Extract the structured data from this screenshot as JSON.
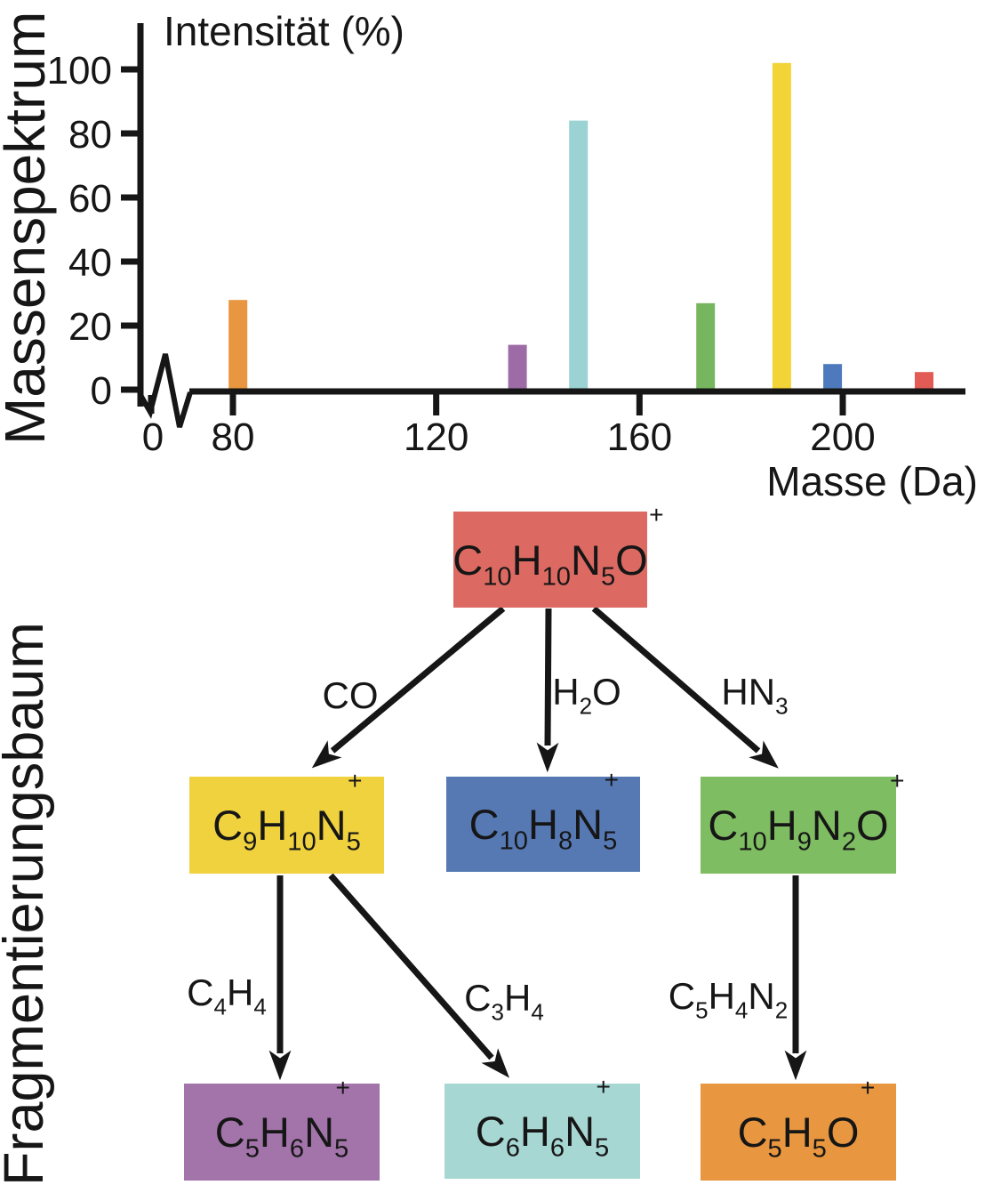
{
  "panels": {
    "top_label": "Massenspektrum",
    "bottom_label": "Fragmentierungsbaum"
  },
  "chart_data": {
    "type": "bar",
    "title": "",
    "ylabel": "Intensität (%)",
    "xlabel": "Masse (Da)",
    "y_ticks": [
      0,
      20,
      40,
      60,
      80,
      100
    ],
    "x_ticks": [
      0,
      80,
      120,
      160,
      200
    ],
    "has_x_axis_break": true,
    "x_break_between": [
      0,
      72
    ],
    "x_range_shown": [
      72,
      225
    ],
    "ylim": [
      0,
      114
    ],
    "grid": false,
    "legend": false,
    "bars": [
      {
        "mass": 81,
        "intensity": 28,
        "color": "#E8963F"
      },
      {
        "mass": 136,
        "intensity": 14,
        "color": "#9D6CA6"
      },
      {
        "mass": 148,
        "intensity": 84,
        "color": "#9BD2D3"
      },
      {
        "mass": 173,
        "intensity": 27,
        "color": "#76B65F"
      },
      {
        "mass": 188,
        "intensity": 102,
        "color": "#F2D437"
      },
      {
        "mass": 198,
        "intensity": 8,
        "color": "#4E79BC"
      },
      {
        "mass": 216,
        "intensity": 5.5,
        "color": "#E25B55"
      }
    ]
  },
  "tree": {
    "nodes": [
      {
        "id": "parent",
        "text": "C₁₀H₁₀N₅O⁺",
        "color": "#DC6A62",
        "formula": [
          {
            "m": "C",
            "sub": "10"
          },
          {
            "m": "H",
            "sub": "10"
          },
          {
            "m": "N",
            "sub": "5"
          },
          {
            "m": "O",
            "sup": "+"
          }
        ]
      },
      {
        "id": "co-product",
        "text": "C₉H₁₀N₅⁺",
        "color": "#F0D23E",
        "formula": [
          {
            "m": "C",
            "sub": "9"
          },
          {
            "m": "H",
            "sub": "10"
          },
          {
            "m": "N",
            "sub": "5",
            "sup": "+"
          }
        ]
      },
      {
        "id": "h2o-product",
        "text": "C₁₀H₈N₅⁺",
        "color": "#5679B4",
        "formula": [
          {
            "m": "C",
            "sub": "10"
          },
          {
            "m": "H",
            "sub": "8"
          },
          {
            "m": "N",
            "sub": "5",
            "sup": "+"
          }
        ]
      },
      {
        "id": "hn3-product",
        "text": "C₁₀H₉N₂O⁺",
        "color": "#7FBD62",
        "formula": [
          {
            "m": "C",
            "sub": "10"
          },
          {
            "m": "H",
            "sub": "9"
          },
          {
            "m": "N",
            "sub": "2"
          },
          {
            "m": "O",
            "sup": "+"
          }
        ]
      },
      {
        "id": "c4h4-product",
        "text": "C₅H₆N₅⁺",
        "color": "#A274AA",
        "formula": [
          {
            "m": "C",
            "sub": "5"
          },
          {
            "m": "H",
            "sub": "6"
          },
          {
            "m": "N",
            "sub": "5",
            "sup": "+"
          }
        ]
      },
      {
        "id": "c3h4-product",
        "text": "C₆H₆N₅⁺",
        "color": "#A7D7D3",
        "formula": [
          {
            "m": "C",
            "sub": "6"
          },
          {
            "m": "H",
            "sub": "6"
          },
          {
            "m": "N",
            "sub": "5",
            "sup": "+"
          }
        ]
      },
      {
        "id": "c5h4n2-product",
        "text": "C₅H₅O⁺",
        "color": "#E8963F",
        "formula": [
          {
            "m": "C",
            "sub": "5"
          },
          {
            "m": "H",
            "sub": "5"
          },
          {
            "m": "O",
            "sup": "+"
          }
        ]
      }
    ],
    "edges": [
      {
        "from": "parent",
        "to": "co-product",
        "label": "CO",
        "formula": [
          {
            "m": "CO"
          }
        ]
      },
      {
        "from": "parent",
        "to": "h2o-product",
        "label": "H₂O",
        "formula": [
          {
            "m": "H",
            "sub": "2"
          },
          {
            "m": "O"
          }
        ]
      },
      {
        "from": "parent",
        "to": "hn3-product",
        "label": "HN₃",
        "formula": [
          {
            "m": "HN",
            "sub": "3"
          }
        ]
      },
      {
        "from": "co-product",
        "to": "c4h4-product",
        "label": "C₄H₄",
        "formula": [
          {
            "m": "C",
            "sub": "4"
          },
          {
            "m": "H",
            "sub": "4"
          }
        ]
      },
      {
        "from": "co-product",
        "to": "c3h4-product",
        "label": "C₃H₄",
        "formula": [
          {
            "m": "C",
            "sub": "3"
          },
          {
            "m": "H",
            "sub": "4"
          }
        ]
      },
      {
        "from": "hn3-product",
        "to": "c5h4n2-product",
        "label": "C₅H₄N₂",
        "formula": [
          {
            "m": "C",
            "sub": "5"
          },
          {
            "m": "H",
            "sub": "4"
          },
          {
            "m": "N",
            "sub": "2"
          }
        ]
      }
    ]
  }
}
